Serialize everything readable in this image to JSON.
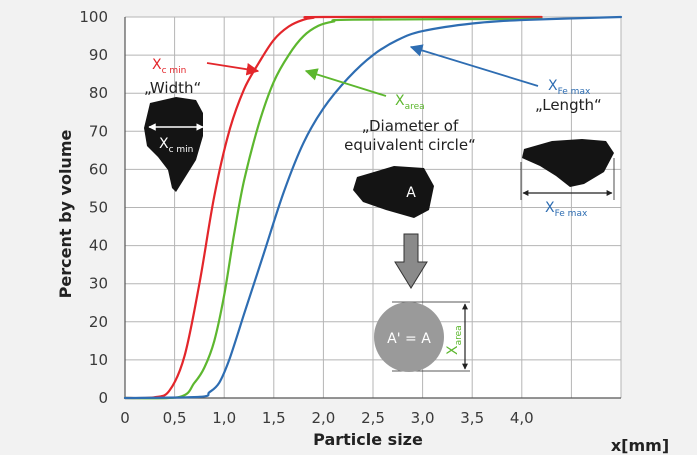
{
  "chart_data": {
    "type": "line",
    "xlabel": "Particle size",
    "xunit": "x[mm]",
    "ylabel": "Percent by volume",
    "xlim": [
      0,
      5
    ],
    "ylim": [
      0,
      100
    ],
    "x_ticks": [
      "0",
      "0,5",
      "1,0",
      "1,5",
      "2,0",
      "2,5",
      "3,0",
      "3,5",
      "4,0"
    ],
    "y_ticks": [
      "0",
      "10",
      "20",
      "30",
      "40",
      "50",
      "60",
      "70",
      "80",
      "90",
      "100"
    ],
    "grid": true,
    "series": [
      {
        "name": "X c min",
        "color": "#e3262b",
        "x": [
          0,
          0.3,
          0.45,
          0.6,
          0.75,
          0.9,
          1.05,
          1.2,
          1.35,
          1.5,
          1.65,
          1.8,
          1.9,
          2.0,
          4.2
        ],
        "y": [
          0,
          0.2,
          2,
          11,
          30,
          53,
          70,
          81,
          88,
          94,
          97.5,
          99.3,
          99.8,
          100,
          100
        ]
      },
      {
        "name": "X area",
        "color": "#5db72f",
        "x": [
          0,
          0.55,
          0.7,
          0.8,
          0.9,
          1.0,
          1.1,
          1.2,
          1.35,
          1.5,
          1.65,
          1.8,
          1.95,
          2.1,
          2.3,
          4.2
        ],
        "y": [
          0,
          0.3,
          4,
          8,
          15,
          27,
          43,
          57,
          72,
          83,
          90,
          95,
          97.7,
          98.8,
          99.3,
          99.5
        ]
      },
      {
        "name": "X Fe max",
        "color": "#2e6db2",
        "x": [
          0,
          0.75,
          0.85,
          0.95,
          1.05,
          1.2,
          1.4,
          1.6,
          1.8,
          2.0,
          2.25,
          2.5,
          2.75,
          3.0,
          3.5,
          4.0,
          5.0
        ],
        "y": [
          0,
          0.3,
          1.5,
          4,
          10,
          22,
          38,
          54,
          67,
          76,
          84,
          90,
          94,
          96.3,
          98.3,
          99.2,
          100
        ]
      }
    ],
    "annotations": {
      "xcmin": {
        "main": "X",
        "sub": "c min",
        "color": "#e3262b"
      },
      "width_label": "„Width“",
      "xcmin_shape": {
        "main": "X",
        "sub": "c min"
      },
      "xarea": {
        "main": "X",
        "sub": "area",
        "color": "#5db72f"
      },
      "diameter_label_1": "„Diameter of",
      "diameter_label_2": "equivalent circle“",
      "area_shape_label": "A",
      "circle_label": "A' = A",
      "xarea_vertical": {
        "main": "X",
        "sub": "area",
        "color": "#5db72f"
      },
      "xfemax": {
        "main": "X",
        "sub": "Fe max",
        "color": "#2e6db2"
      },
      "length_label": "„Length“",
      "xfemax_shape": {
        "main": "X",
        "sub": "Fe max",
        "color": "#2e6db2"
      }
    }
  }
}
